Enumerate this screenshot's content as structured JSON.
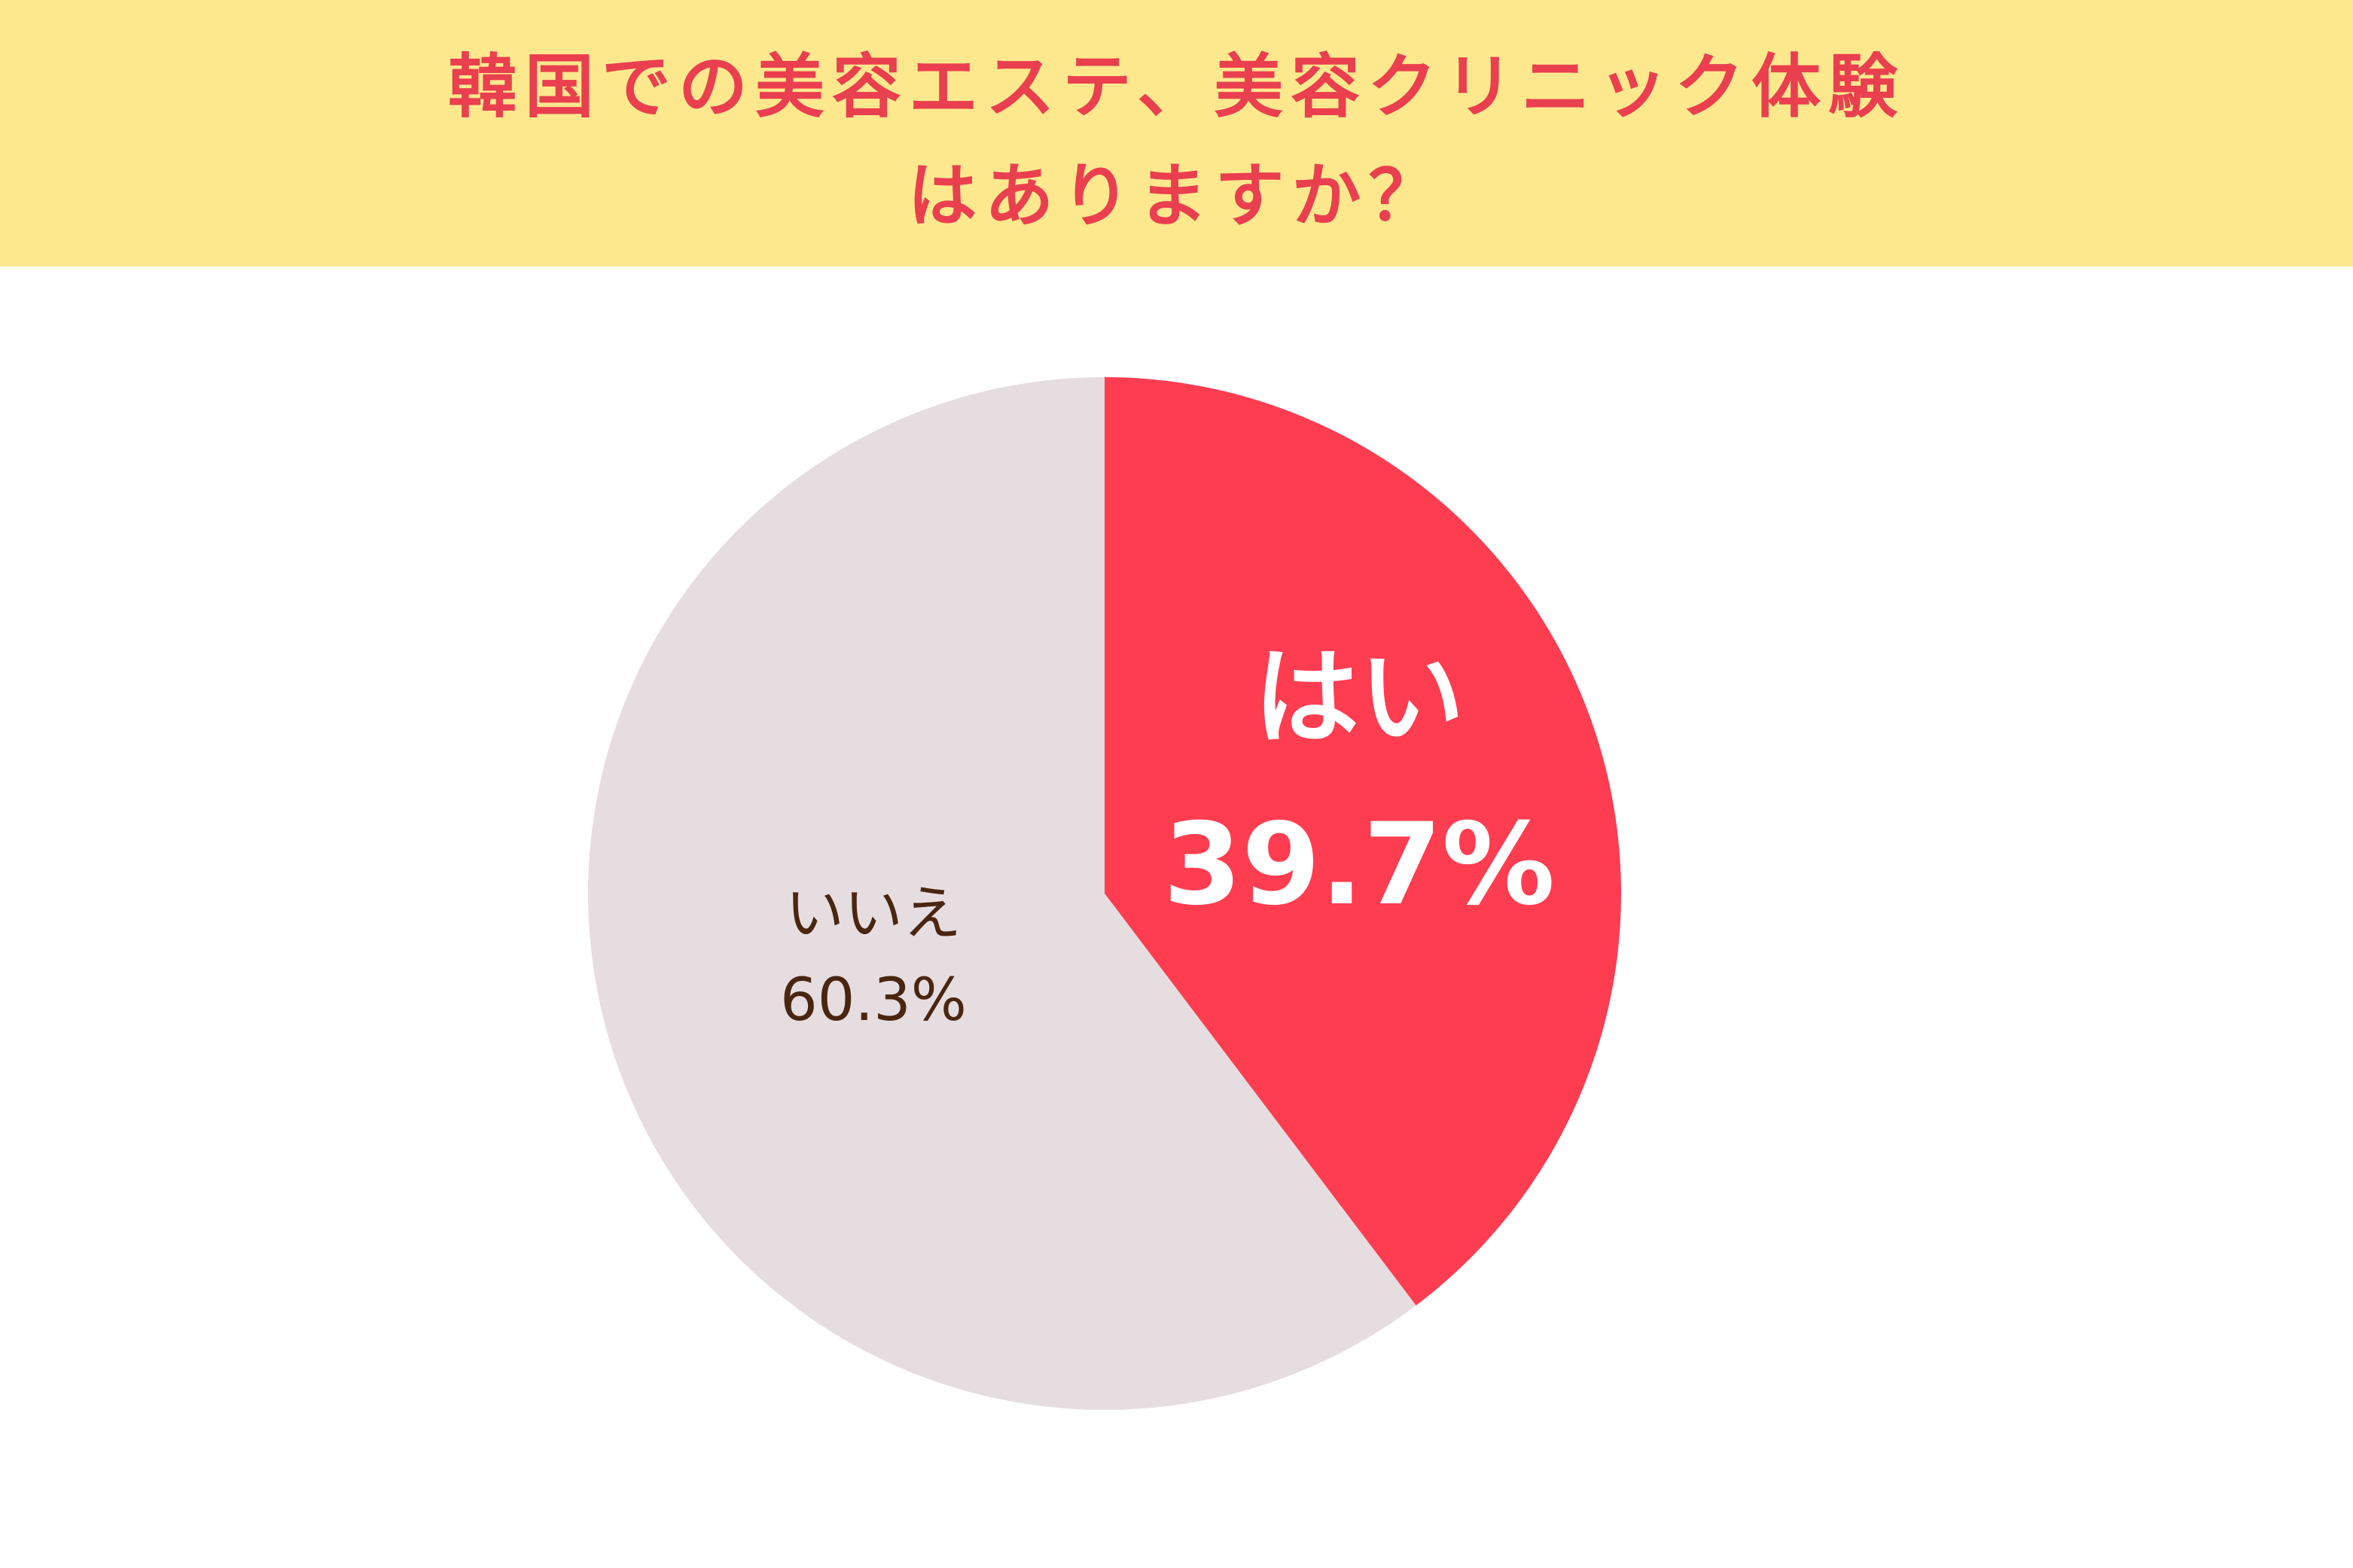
{
  "header": {
    "title_line1": "韓国での美容エステ、美容クリニック体験",
    "title_line2": "はありますか？"
  },
  "colors": {
    "banner": "#fee88e",
    "title": "#ea3f4f",
    "yes_slice": "#ff3d51",
    "no_slice": "#e6dde0",
    "yes_label": "#ffffff",
    "no_label": "#4a2510"
  },
  "chart_data": {
    "type": "pie",
    "title": "韓国での美容エステ、美容クリニック体験はありますか？",
    "slices": [
      {
        "label": "はい",
        "value": 39.7,
        "value_label": "39.7%"
      },
      {
        "label": "いいえ",
        "value": 60.3,
        "value_label": "60.3%"
      }
    ],
    "start": "12 o'clock",
    "direction": "clockwise",
    "legend": "none"
  }
}
